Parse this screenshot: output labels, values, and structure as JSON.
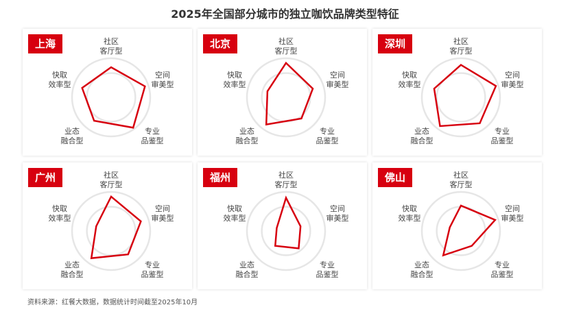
{
  "chart_data": [
    {
      "type": "radar",
      "title": "上海",
      "axes": [
        "社区\n客厅型",
        "空间\n审美型",
        "专业\n品鉴型",
        "业态\n融合型",
        "快取\n效率型"
      ],
      "values": [
        0.77,
        0.91,
        0.96,
        0.74,
        0.78
      ]
    },
    {
      "type": "radar",
      "title": "北京",
      "axes": [
        "社区\n客厅型",
        "空间\n审美型",
        "专业\n品鉴型",
        "业态\n融合型",
        "快取\n效率型"
      ],
      "values": [
        0.88,
        0.72,
        0.67,
        0.86,
        0.5
      ]
    },
    {
      "type": "radar",
      "title": "深圳",
      "axes": [
        "社区\n客厅型",
        "空间\n审美型",
        "专业\n品鉴型",
        "业态\n融合型",
        "快取\n效率型"
      ],
      "values": [
        0.83,
        0.94,
        0.82,
        0.91,
        0.72
      ]
    },
    {
      "type": "radar",
      "title": "广州",
      "axes": [
        "社区\n客厅型",
        "空间\n审美型",
        "专业\n品鉴型",
        "业态\n融合型",
        "快取\n效率型"
      ],
      "values": [
        0.88,
        0.8,
        0.74,
        0.86,
        0.4
      ]
    },
    {
      "type": "radar",
      "title": "福州",
      "axes": [
        "社区\n客厅型",
        "空间\n审美型",
        "专业\n品鉴型",
        "业态\n融合型",
        "快取\n效率型"
      ],
      "values": [
        0.85,
        0.39,
        0.55,
        0.47,
        0.25
      ]
    },
    {
      "type": "radar",
      "title": "佛山",
      "axes": [
        "社区\n客厅型",
        "空间\n审美型",
        "专业\n品鉴型",
        "业态\n融合型",
        "快取\n效率型"
      ],
      "values": [
        0.65,
        0.92,
        0.47,
        0.77,
        0.3
      ]
    }
  ],
  "title": "2025年全国部分城市的独立咖饮品牌类型特征",
  "source": "资料来源：红餐大数据，数据统计时间截至2025年10月",
  "colors": {
    "series": "#d7000f",
    "ring": "#e6e6e6"
  }
}
